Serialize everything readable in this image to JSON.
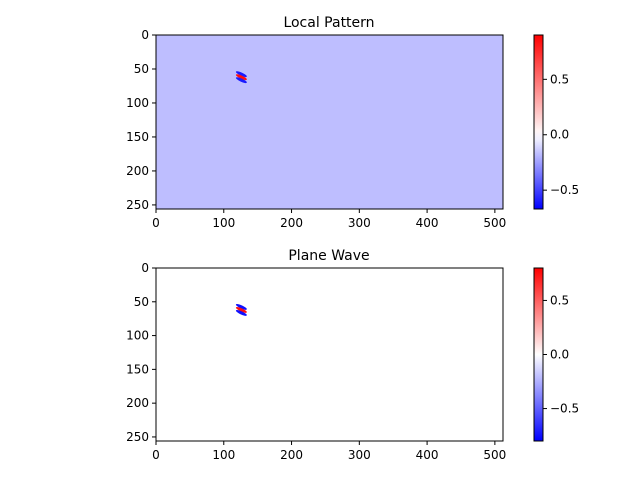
{
  "chart_data": [
    {
      "type": "heatmap",
      "title": "Local Pattern",
      "xlabel": "",
      "ylabel": "",
      "xlim": [
        0,
        512
      ],
      "ylim": [
        256,
        0
      ],
      "x_ticks": [
        0,
        100,
        200,
        300,
        400,
        500
      ],
      "y_ticks": [
        0,
        50,
        100,
        150,
        200,
        250
      ],
      "background_value": -0.17,
      "colormap": "bwr",
      "colorbar": {
        "vmin": -0.67,
        "vmax": 0.9,
        "ticks": [
          -0.5,
          0.0,
          0.5
        ],
        "tick_labels": [
          "−0.5",
          "0.0",
          "0.5"
        ]
      },
      "feature": {
        "center_x": 126,
        "center_y": 62,
        "stripes": [
          {
            "offset": -3,
            "value": -0.6
          },
          {
            "offset": 0,
            "value": 0.85
          },
          {
            "offset": 3,
            "value": -0.6
          }
        ]
      },
      "grid": false
    },
    {
      "type": "heatmap",
      "title": "Plane Wave",
      "xlabel": "",
      "ylabel": "",
      "xlim": [
        0,
        512
      ],
      "ylim": [
        256,
        0
      ],
      "x_ticks": [
        0,
        100,
        200,
        300,
        400,
        500
      ],
      "y_ticks": [
        0,
        50,
        100,
        150,
        200,
        250
      ],
      "background_value": 0.0,
      "colormap": "bwr",
      "colorbar": {
        "vmin": -0.8,
        "vmax": 0.8,
        "ticks": [
          -0.5,
          0.0,
          0.5
        ],
        "tick_labels": [
          "−0.5",
          "0.0",
          "0.5"
        ]
      },
      "feature": {
        "center_x": 126,
        "center_y": 62,
        "stripes": [
          {
            "offset": -3,
            "value": -0.75
          },
          {
            "offset": 0,
            "value": 0.75
          },
          {
            "offset": 3,
            "value": -0.75
          }
        ]
      },
      "grid": false
    }
  ]
}
